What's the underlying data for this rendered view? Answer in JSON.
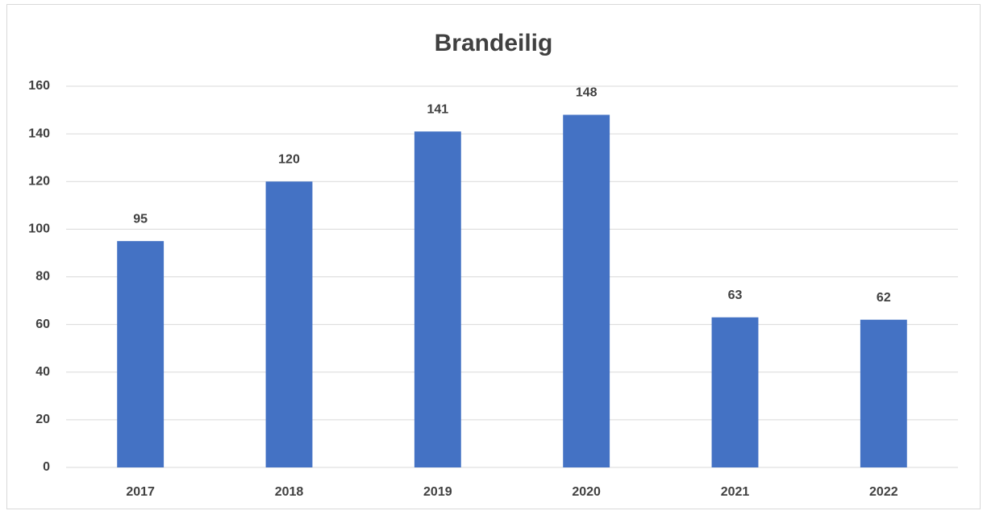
{
  "chart_data": {
    "type": "bar",
    "title": "Brandeilig",
    "categories": [
      "2017",
      "2018",
      "2019",
      "2020",
      "2021",
      "2022"
    ],
    "values": [
      95,
      120,
      141,
      148,
      63,
      62
    ],
    "color": "#4472c4",
    "ylim": [
      0,
      160
    ],
    "yticks": [
      0,
      20,
      40,
      60,
      80,
      100,
      120,
      140,
      160
    ],
    "grid": true
  }
}
